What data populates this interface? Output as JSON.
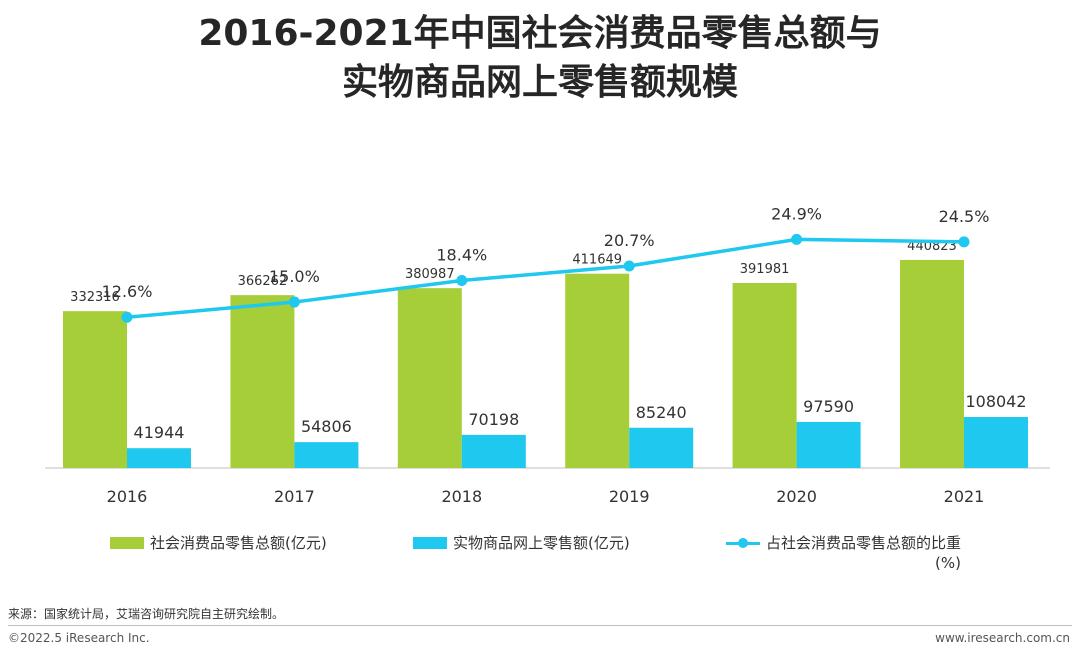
{
  "title_line1": "2016-2021年中国社会消费品零售总额与",
  "title_line2": "实物商品网上零售额规模",
  "chart_data": {
    "type": "bar",
    "categories": [
      "2016",
      "2017",
      "2018",
      "2019",
      "2020",
      "2021"
    ],
    "series": [
      {
        "name": "社会消费品零售总额(亿元)",
        "type": "bar",
        "color": "#a6ce39",
        "values": [
          332316,
          366262,
          380987,
          411649,
          391981,
          440823
        ]
      },
      {
        "name": "实物商品网上零售额(亿元)",
        "type": "bar",
        "color": "#1ec8ee",
        "values": [
          41944,
          54806,
          70198,
          85240,
          97590,
          108042
        ]
      },
      {
        "name": "占社会消费品零售总额的比重(%)",
        "type": "line",
        "color": "#1ec8ee",
        "values": [
          12.6,
          15.0,
          18.4,
          20.7,
          24.9,
          24.5
        ],
        "labels": [
          "12.6%",
          "15.0%",
          "18.4%",
          "20.7%",
          "24.9%",
          "24.5%"
        ]
      }
    ],
    "ylim": [
      0,
      500000
    ],
    "line_ylim": [
      0,
      50
    ],
    "grid": false
  },
  "legend": {
    "total_label": "社会消费品零售总额(亿元)",
    "online_label": "实物商品网上零售额(亿元)",
    "share_label": "占社会消费品零售总额的比重",
    "share_unit": "(%)"
  },
  "footer": {
    "source": "来源：国家统计局，艾瑞咨询研究院自主研究绘制。",
    "copyright": "©2022.5 iResearch Inc.",
    "website": "www.iresearch.com.cn"
  }
}
